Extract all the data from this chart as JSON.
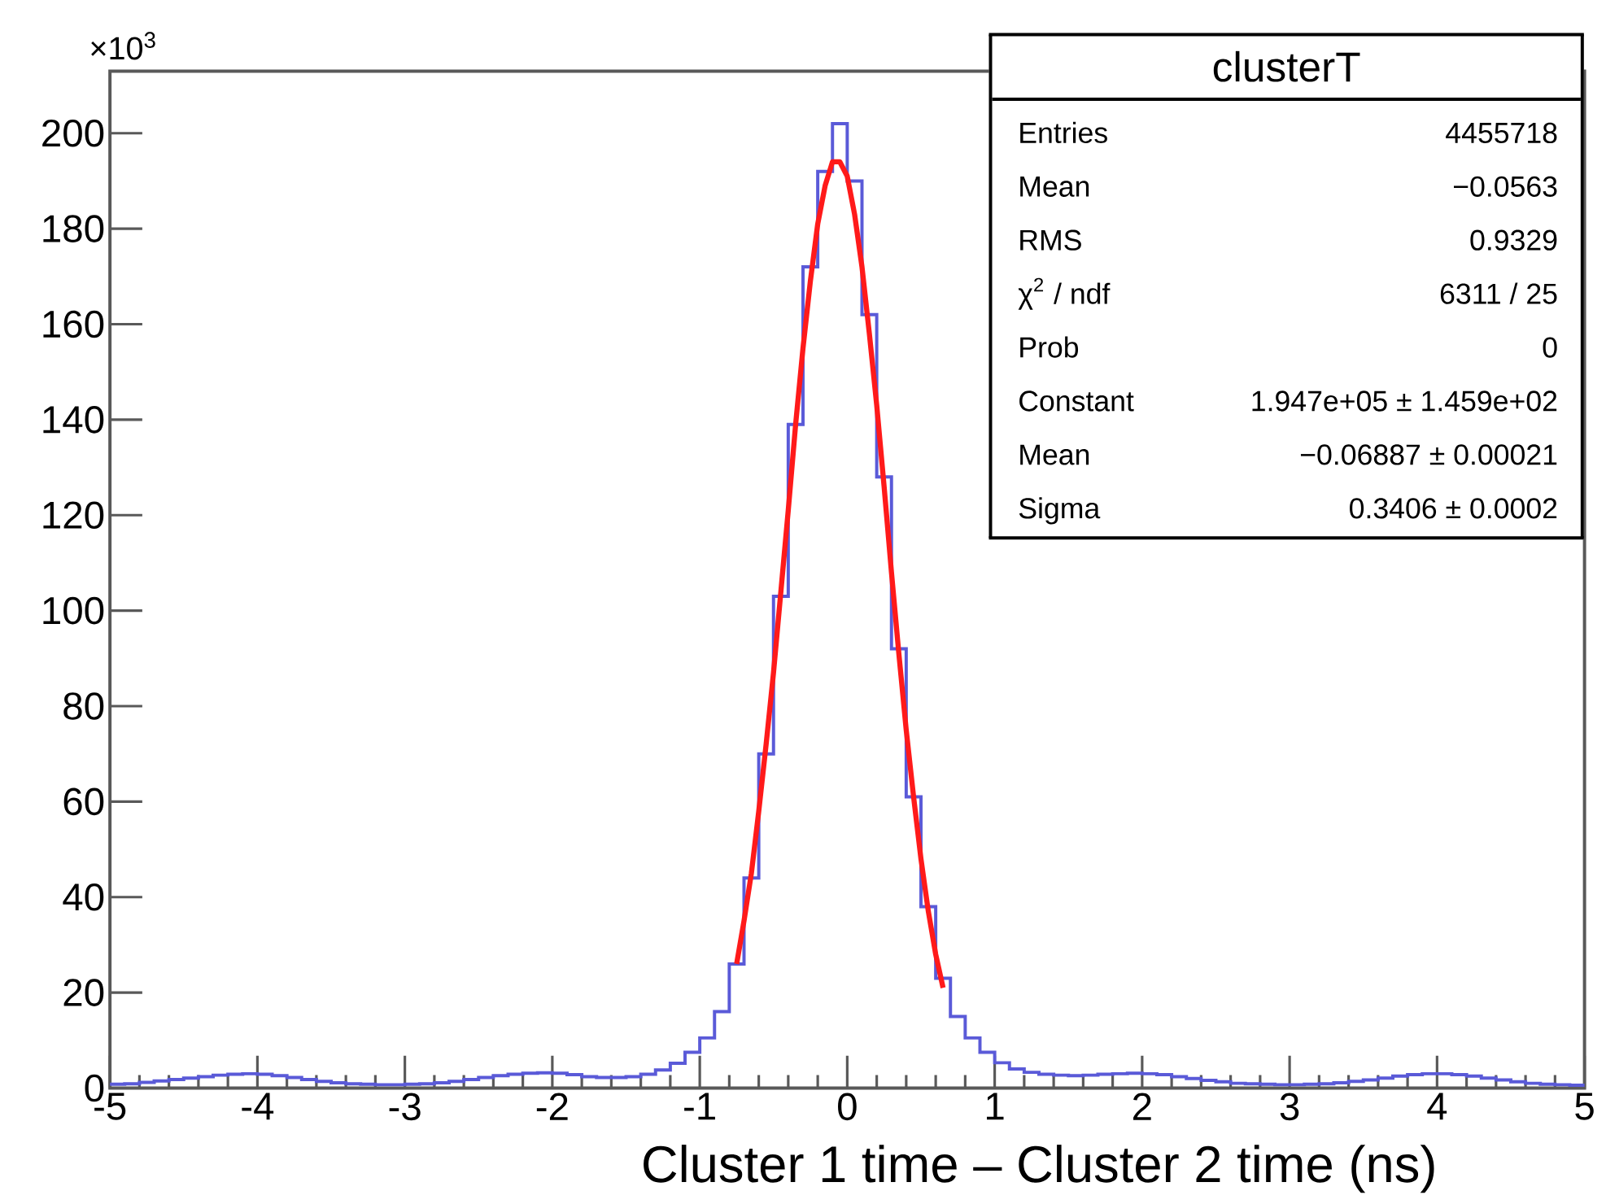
{
  "chart_data": {
    "type": "histogram",
    "title": "clusterT",
    "xlabel": "Cluster 1 time – Cluster 2 time (ns)",
    "xlim": [
      -5,
      5
    ],
    "ylim": [
      0,
      213
    ],
    "xticks": [
      -5,
      -4,
      -3,
      -2,
      -1,
      0,
      1,
      2,
      3,
      4,
      5
    ],
    "yticks": [
      0,
      20,
      40,
      60,
      80,
      100,
      120,
      140,
      160,
      180,
      200
    ],
    "series": [
      {
        "color": "#5a5ad8",
        "bins": [
          -5.0,
          -4.9,
          -4.8,
          -4.7,
          -4.6,
          -4.5,
          -4.4,
          -4.3,
          -4.2,
          -4.1,
          -4.0,
          -3.9,
          -3.8,
          -3.7,
          -3.6,
          -3.5,
          -3.4,
          -3.3,
          -3.2,
          -3.1,
          -3.0,
          -2.9,
          -2.8,
          -2.7,
          -2.6,
          -2.5,
          -2.4,
          -2.3,
          -2.2,
          -2.1,
          -2.0,
          -1.9,
          -1.8,
          -1.7,
          -1.6,
          -1.5,
          -1.4,
          -1.3,
          -1.2,
          -1.1,
          -1.0,
          -0.9,
          -0.8,
          -0.7,
          -0.6,
          -0.5,
          -0.4,
          -0.3,
          -0.2,
          -0.1,
          0.0,
          0.1,
          0.2,
          0.3,
          0.4,
          0.5,
          0.6,
          0.7,
          0.8,
          0.9,
          1.0,
          1.1,
          1.2,
          1.3,
          1.4,
          1.5,
          1.6,
          1.7,
          1.8,
          1.9,
          2.0,
          2.1,
          2.2,
          2.3,
          2.4,
          2.5,
          2.6,
          2.7,
          2.8,
          2.9,
          3.0,
          3.1,
          3.2,
          3.3,
          3.4,
          3.5,
          3.6,
          3.7,
          3.8,
          3.9,
          4.0,
          4.1,
          4.2,
          4.3,
          4.4,
          4.5,
          4.6,
          4.7,
          4.8,
          4.9,
          5.0
        ],
        "values": [
          0.8,
          0.9,
          1.2,
          1.5,
          1.8,
          2.1,
          2.4,
          2.7,
          2.9,
          3.0,
          2.9,
          2.6,
          2.2,
          1.8,
          1.4,
          1.1,
          0.9,
          0.8,
          0.7,
          0.7,
          0.8,
          0.9,
          1.1,
          1.4,
          1.8,
          2.2,
          2.6,
          2.9,
          3.1,
          3.2,
          3.1,
          2.8,
          2.4,
          2.2,
          2.2,
          2.4,
          2.9,
          3.8,
          5.2,
          7.5,
          10.5,
          16,
          26,
          44,
          70,
          103,
          139,
          172,
          192,
          202,
          190,
          162,
          128,
          92,
          61,
          38,
          23,
          15,
          10.5,
          7.5,
          5.3,
          4.0,
          3.3,
          2.9,
          2.7,
          2.6,
          2.7,
          2.9,
          3.0,
          3.1,
          3.0,
          2.8,
          2.4,
          2.0,
          1.6,
          1.3,
          1.0,
          0.9,
          0.8,
          0.7,
          0.7,
          0.8,
          0.9,
          1.1,
          1.4,
          1.7,
          2.1,
          2.5,
          2.8,
          3.0,
          3.0,
          2.8,
          2.5,
          2.1,
          1.7,
          1.3,
          1.0,
          0.8,
          0.7,
          0.6
        ]
      },
      {
        "type": "line",
        "color": "#ff1a1a",
        "x": [
          -0.75,
          -0.7,
          -0.65,
          -0.6,
          -0.55,
          -0.5,
          -0.45,
          -0.4,
          -0.35,
          -0.3,
          -0.25,
          -0.2,
          -0.15,
          -0.1,
          -0.05,
          0.0,
          0.05,
          0.1,
          0.15,
          0.2,
          0.25,
          0.3,
          0.35,
          0.4,
          0.45,
          0.5,
          0.55,
          0.6,
          0.65
        ],
        "values": [
          26,
          35,
          45,
          58,
          72,
          87,
          104,
          121,
          139,
          155,
          169,
          181,
          189,
          194,
          194,
          191,
          183,
          172,
          158,
          143,
          126,
          108,
          91,
          75,
          61,
          48,
          37,
          28,
          21
        ]
      }
    ],
    "annotations": [
      "×10$^{3}$",
      "Entries",
      "4455718",
      "Mean",
      "−0.0563",
      "RMS",
      "0.9329",
      "χ$^{2}$ / ndf",
      "6311 / 25",
      "Prob",
      "0",
      "Constant",
      "1.947e+05 ± 1.459e+02",
      "Mean",
      "−0.06887 ± 0.00021",
      "Sigma",
      "0.3406 ± 0.0002"
    ]
  }
}
